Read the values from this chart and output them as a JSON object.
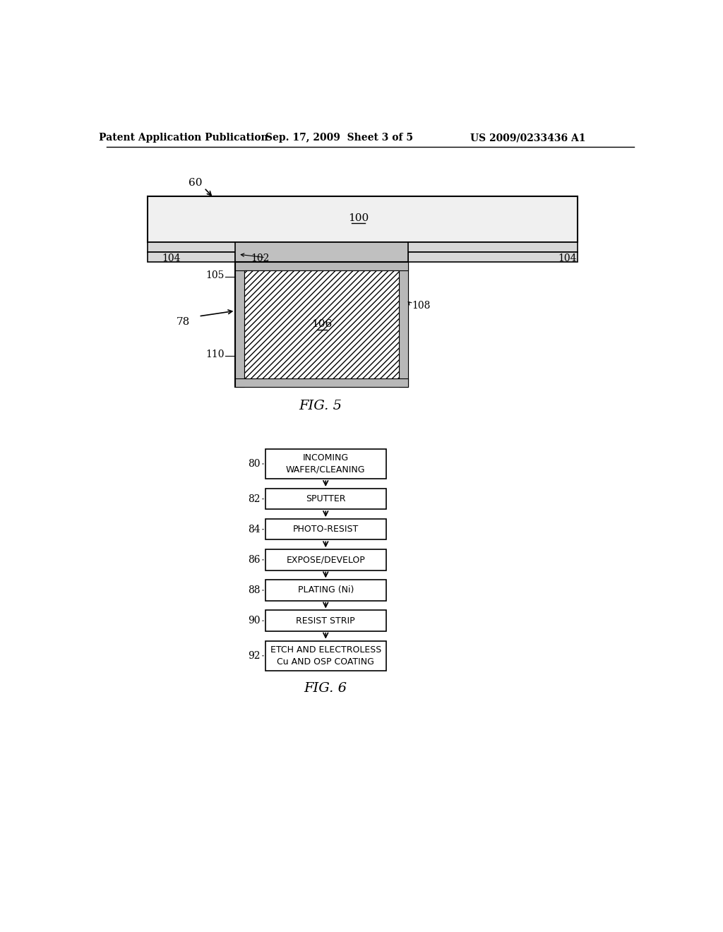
{
  "bg_color": "#ffffff",
  "header_left": "Patent Application Publication",
  "header_mid": "Sep. 17, 2009  Sheet 3 of 5",
  "header_right": "US 2009/0233436 A1",
  "fig5_label": "FIG. 5",
  "fig6_label": "FIG. 6",
  "flowchart_steps": [
    {
      "label": "INCOMING\nWAFER/CLEANING",
      "ref": "80"
    },
    {
      "label": "SPUTTER",
      "ref": "82"
    },
    {
      "label": "PHOTO-RESIST",
      "ref": "84"
    },
    {
      "label": "EXPOSE/DEVELOP",
      "ref": "86"
    },
    {
      "label": "PLATING (Ni)",
      "ref": "88"
    },
    {
      "label": "RESIST STRIP",
      "ref": "90"
    },
    {
      "label": "ETCH AND ELECTROLESS\nCu AND OSP COATING",
      "ref": "92"
    }
  ]
}
